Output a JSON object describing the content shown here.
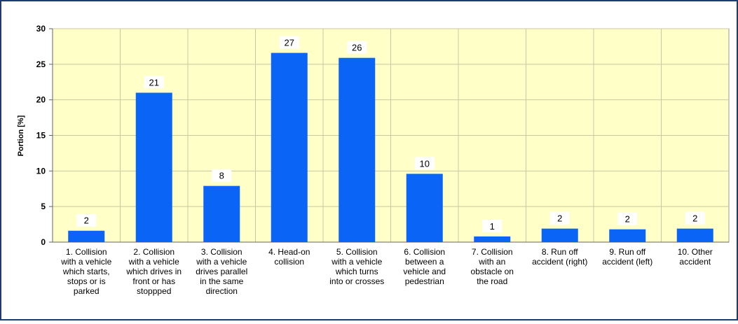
{
  "chart_data": {
    "type": "bar",
    "y_label": "Portion [%]",
    "categories": [
      "1. Collision\nwith a vehicle\nwhich starts,\nstops or is\nparked",
      "2. Collision\nwith a vehicle\nwhich drives in\nfront or has\nstoppped",
      "3. Collision\nwith a vehicle\ndrives parallel\nin the same\ndirection",
      "4. Head-on\ncollision",
      "5. Collision\nwith a vehicle\nwhich turns\ninto or crosses",
      "6. Collision\nbetween a\nvehicle and\npedestrian",
      "7. Collision\nwith an\nobstacle on\nthe road",
      "8. Run off\naccident (right)",
      "9. Run off\naccident (left)",
      "10. Other\naccident"
    ],
    "values": [
      1.6,
      21.0,
      7.9,
      26.6,
      25.9,
      9.6,
      0.8,
      1.9,
      1.8,
      1.9
    ],
    "value_labels": [
      "2",
      "21",
      "8",
      "27",
      "26",
      "10",
      "1",
      "2",
      "2",
      "2"
    ],
    "color": "#0a64f5",
    "ylim": [
      0,
      30
    ],
    "yticks": [
      0,
      5,
      10,
      15,
      20,
      25,
      30
    ],
    "grid": true
  }
}
